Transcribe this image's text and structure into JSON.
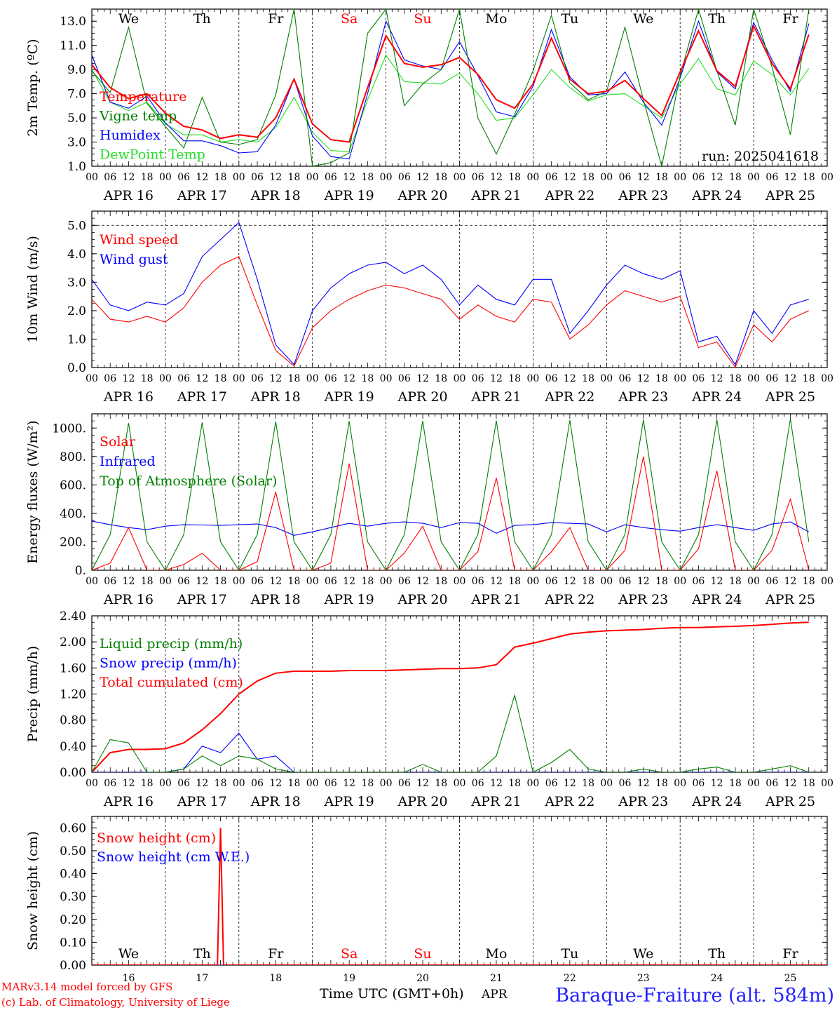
{
  "run_label": "run: 2025041618",
  "footer": {
    "model_line": "MARv3.14 model forced by GFS",
    "credit_line": "(c) Lab. of Climatology, University of Liege",
    "time_label": "Time UTC (GMT+0h)",
    "month_label": "APR",
    "station": "Baraque-Fraiture (alt. 584m)"
  },
  "hour_ticks": [
    "00",
    "06",
    "12",
    "18"
  ],
  "date_labels": [
    "APR 16",
    "APR 17",
    "APR 18",
    "APR 19",
    "APR 20",
    "APR 21",
    "APR 22",
    "APR 23",
    "APR 24",
    "APR 25"
  ],
  "day_numbers": [
    "16",
    "17",
    "18",
    "19",
    "20",
    "21",
    "22",
    "23",
    "24",
    "25"
  ],
  "weekdays": [
    {
      "label": "We",
      "weekend": false
    },
    {
      "label": "Th",
      "weekend": false
    },
    {
      "label": "Fr",
      "weekend": false
    },
    {
      "label": "Sa",
      "weekend": true
    },
    {
      "label": "Su",
      "weekend": true
    },
    {
      "label": "Mo",
      "weekend": false
    },
    {
      "label": "Tu",
      "weekend": false
    },
    {
      "label": "We",
      "weekend": false
    },
    {
      "label": "Th",
      "weekend": false
    },
    {
      "label": "Fr",
      "weekend": false
    }
  ],
  "colors": {
    "red": "#ff0000",
    "dark_green": "#008000",
    "blue": "#0000ff",
    "light_green": "#22dd22",
    "weekend": "#ff0000",
    "station": "#2222ff"
  },
  "chart_data": [
    {
      "type": "line",
      "ylabel": "2m Temp. (ºC)",
      "ylim": [
        1,
        14
      ],
      "yticks": [
        "1.0",
        "3.0",
        "5.0",
        "7.0",
        "9.0",
        "11.0",
        "13.0"
      ],
      "x": [
        0,
        6,
        12,
        18,
        24,
        30,
        36,
        42,
        48,
        54,
        60,
        66,
        72,
        78,
        84,
        90,
        96,
        102,
        108,
        114,
        120,
        126,
        132,
        138,
        144,
        150,
        156,
        162,
        168,
        174,
        180,
        186,
        192,
        198,
        204,
        210,
        216,
        222,
        228,
        234
      ],
      "series": [
        {
          "name": "Temperature",
          "color": "#ff0000",
          "values": [
            9.4,
            7.5,
            6.6,
            7.0,
            5.4,
            4.3,
            4.0,
            3.3,
            3.6,
            3.4,
            5.0,
            8.2,
            4.5,
            3.2,
            3.0,
            7.5,
            11.8,
            9.5,
            9.2,
            9.4,
            10.0,
            8.6,
            6.5,
            5.8,
            7.8,
            11.6,
            8.2,
            7.0,
            7.2,
            8.1,
            6.6,
            5.2,
            8.8,
            12.2,
            8.9,
            7.6,
            12.6,
            9.5,
            7.4,
            11.9
          ]
        },
        {
          "name": "Vigne temp",
          "color": "#008000",
          "values": [
            8.9,
            7.1,
            12.5,
            6.2,
            4.3,
            2.5,
            6.7,
            3.0,
            2.8,
            3.2,
            6.9,
            14.0,
            1.0,
            1.3,
            2.1,
            12.0,
            14.0,
            6.0,
            7.8,
            9.0,
            14.0,
            5.0,
            2.0,
            5.3,
            8.9,
            13.5,
            7.9,
            6.5,
            7.2,
            12.5,
            6.5,
            1.0,
            8.5,
            14.0,
            8.9,
            4.4,
            14.0,
            9.2,
            3.6,
            14.0
          ]
        },
        {
          "name": "Humidex",
          "color": "#0000ff",
          "values": [
            10.2,
            6.3,
            5.8,
            6.8,
            4.6,
            3.1,
            3.1,
            2.7,
            2.1,
            2.2,
            4.4,
            8.2,
            3.5,
            1.8,
            1.6,
            7.0,
            13.0,
            9.8,
            9.3,
            9.0,
            11.3,
            8.5,
            5.5,
            5.1,
            7.6,
            12.3,
            8.4,
            6.9,
            7.0,
            8.8,
            6.3,
            4.4,
            8.3,
            13.0,
            8.8,
            7.4,
            12.9,
            9.8,
            7.2,
            12.8
          ]
        },
        {
          "name": "DewPoint Temp",
          "color": "#22dd22",
          "values": [
            9.0,
            6.3,
            5.6,
            6.3,
            4.5,
            3.6,
            3.6,
            3.0,
            3.2,
            3.0,
            4.2,
            6.7,
            3.8,
            2.3,
            2.2,
            6.5,
            10.2,
            8.0,
            7.9,
            7.8,
            8.7,
            7.0,
            4.8,
            5.0,
            6.9,
            9.0,
            7.5,
            6.4,
            6.9,
            7.0,
            6.0,
            5.0,
            7.8,
            9.9,
            7.4,
            6.9,
            9.7,
            8.6,
            6.9,
            9.1
          ]
        }
      ]
    },
    {
      "type": "line",
      "ylabel": "10m Wind (m/s)",
      "ylim": [
        0,
        5.5
      ],
      "yticks": [
        "0.0",
        "1.0",
        "2.0",
        "3.0",
        "4.0",
        "5.0"
      ],
      "x": [
        0,
        6,
        12,
        18,
        24,
        30,
        36,
        42,
        48,
        54,
        60,
        66,
        72,
        78,
        84,
        90,
        96,
        102,
        108,
        114,
        120,
        126,
        132,
        138,
        144,
        150,
        156,
        162,
        168,
        174,
        180,
        186,
        192,
        198,
        204,
        210,
        216,
        222,
        228,
        234
      ],
      "series": [
        {
          "name": "Wind speed",
          "color": "#ff0000",
          "values": [
            2.4,
            1.7,
            1.6,
            1.8,
            1.6,
            2.1,
            3.0,
            3.6,
            3.9,
            2.2,
            0.6,
            0.05,
            1.4,
            2.0,
            2.4,
            2.7,
            2.9,
            2.8,
            2.6,
            2.4,
            1.7,
            2.2,
            1.8,
            1.6,
            2.4,
            2.3,
            1.0,
            1.5,
            2.2,
            2.7,
            2.5,
            2.3,
            2.5,
            0.7,
            0.9,
            0.02,
            1.5,
            0.9,
            1.7,
            2.0
          ]
        },
        {
          "name": "Wind gust",
          "color": "#0000ff",
          "values": [
            3.1,
            2.2,
            2.0,
            2.3,
            2.2,
            2.6,
            3.9,
            4.5,
            5.1,
            3.1,
            0.8,
            0.1,
            2.0,
            2.8,
            3.3,
            3.6,
            3.7,
            3.3,
            3.6,
            3.1,
            2.2,
            2.9,
            2.4,
            2.2,
            3.1,
            3.1,
            1.2,
            2.0,
            2.9,
            3.6,
            3.3,
            3.1,
            3.4,
            0.9,
            1.1,
            0.1,
            2.0,
            1.2,
            2.2,
            2.4
          ]
        }
      ]
    },
    {
      "type": "line",
      "ylabel": "Energy fluxes (W/m²)",
      "ylim": [
        0,
        1100
      ],
      "yticks": [
        "0.",
        "200.",
        "400.",
        "600.",
        "800.",
        "1000."
      ],
      "x": [
        0,
        6,
        12,
        18,
        24,
        30,
        36,
        42,
        48,
        54,
        60,
        66,
        72,
        78,
        84,
        90,
        96,
        102,
        108,
        114,
        120,
        126,
        132,
        138,
        144,
        150,
        156,
        162,
        168,
        174,
        180,
        186,
        192,
        198,
        204,
        210,
        216,
        222,
        228,
        234
      ],
      "series": [
        {
          "name": "Solar",
          "color": "#ff0000",
          "values": [
            0,
            50,
            300,
            0,
            0,
            40,
            120,
            0,
            0,
            60,
            550,
            0,
            0,
            50,
            750,
            0,
            0,
            120,
            310,
            0,
            0,
            130,
            650,
            0,
            0,
            130,
            300,
            0,
            0,
            140,
            800,
            0,
            0,
            150,
            700,
            0,
            0,
            140,
            500,
            0
          ]
        },
        {
          "name": "Infrared",
          "color": "#0000ff",
          "values": [
            345,
            320,
            300,
            285,
            310,
            320,
            318,
            315,
            320,
            325,
            300,
            245,
            270,
            300,
            330,
            310,
            330,
            340,
            330,
            300,
            335,
            330,
            260,
            315,
            320,
            335,
            330,
            325,
            270,
            320,
            300,
            285,
            275,
            300,
            320,
            300,
            280,
            325,
            340,
            270
          ]
        },
        {
          "name": "Top of Atmosphere (Solar)",
          "color": "#008000",
          "values": [
            0,
            250,
            1035,
            200,
            0,
            250,
            1040,
            200,
            0,
            250,
            1045,
            200,
            0,
            250,
            1048,
            200,
            0,
            250,
            1050,
            200,
            0,
            250,
            1052,
            200,
            0,
            250,
            1055,
            200,
            0,
            250,
            1058,
            200,
            0,
            250,
            1060,
            200,
            0,
            250,
            1065,
            200
          ]
        }
      ]
    },
    {
      "type": "line",
      "ylabel": "Precip (mm/h)",
      "ylim": [
        0,
        2.4
      ],
      "yticks": [
        "0.00",
        "0.40",
        "0.80",
        "1.20",
        "1.60",
        "2.00",
        "2.40"
      ],
      "x": [
        0,
        6,
        12,
        18,
        24,
        30,
        36,
        42,
        48,
        54,
        60,
        66,
        72,
        78,
        84,
        90,
        96,
        102,
        108,
        114,
        120,
        126,
        132,
        138,
        144,
        150,
        156,
        162,
        168,
        174,
        180,
        186,
        192,
        198,
        204,
        210,
        216,
        222,
        228,
        234
      ],
      "series": [
        {
          "name": "Liquid precip (mm/h)",
          "color": "#008000",
          "values": [
            0,
            0.5,
            0.45,
            0,
            0,
            0.05,
            0.25,
            0.1,
            0.25,
            0.2,
            0.05,
            0,
            0,
            0,
            0,
            0,
            0,
            0,
            0.12,
            0,
            0,
            0,
            0.25,
            1.18,
            0,
            0.15,
            0.35,
            0.05,
            0,
            0,
            0.05,
            0,
            0,
            0.05,
            0.08,
            0,
            0,
            0.05,
            0.1,
            0
          ]
        },
        {
          "name": "Snow precip (mm/h)",
          "color": "#0000ff",
          "values": [
            0,
            0,
            0,
            0,
            0,
            0.05,
            0.4,
            0.3,
            0.6,
            0.2,
            0.25,
            0,
            0,
            0,
            0,
            0,
            0,
            0,
            0,
            0,
            0,
            0,
            0,
            0,
            0,
            0,
            0,
            0,
            0,
            0,
            0,
            0,
            0,
            0,
            0,
            0,
            0,
            0,
            0,
            0
          ]
        },
        {
          "name": "Total cumulated (cm)",
          "color": "#ff0000",
          "values": [
            0,
            0.3,
            0.35,
            0.35,
            0.36,
            0.45,
            0.65,
            0.9,
            1.2,
            1.4,
            1.52,
            1.55,
            1.55,
            1.55,
            1.56,
            1.56,
            1.56,
            1.57,
            1.58,
            1.59,
            1.59,
            1.6,
            1.65,
            1.92,
            1.98,
            2.05,
            2.12,
            2.15,
            2.17,
            2.18,
            2.19,
            2.21,
            2.22,
            2.22,
            2.23,
            2.24,
            2.25,
            2.27,
            2.29,
            2.3
          ]
        }
      ]
    },
    {
      "type": "line",
      "ylabel": "Snow height (cm)",
      "ylim": [
        0,
        0.65
      ],
      "yticks": [
        "0.00",
        "0.10",
        "0.20",
        "0.30",
        "0.40",
        "0.50",
        "0.60"
      ],
      "x": [
        0,
        6,
        12,
        18,
        24,
        30,
        36,
        41,
        42,
        43,
        48,
        54,
        60,
        66,
        72,
        78,
        84,
        90,
        96,
        102,
        108,
        114,
        120,
        126,
        132,
        138,
        144,
        150,
        156,
        162,
        168,
        174,
        180,
        186,
        192,
        198,
        204,
        210,
        216,
        222,
        228,
        234,
        240
      ],
      "series": [
        {
          "name": "Snow height (cm)",
          "color": "#ff0000",
          "values": [
            0,
            0,
            0,
            0,
            0,
            0,
            0,
            0,
            0.6,
            0,
            0,
            0,
            0,
            0,
            0,
            0,
            0,
            0,
            0,
            0,
            0,
            0,
            0,
            0,
            0,
            0,
            0,
            0,
            0,
            0,
            0,
            0,
            0,
            0,
            0,
            0,
            0,
            0,
            0,
            0,
            0,
            0,
            0
          ]
        },
        {
          "name": "Snow height (cm W.E.)",
          "color": "#0000ff",
          "values": [
            0,
            0,
            0,
            0,
            0,
            0,
            0,
            0,
            0,
            0,
            0,
            0,
            0,
            0,
            0,
            0,
            0,
            0,
            0,
            0,
            0,
            0,
            0,
            0,
            0,
            0,
            0,
            0,
            0,
            0,
            0,
            0,
            0,
            0,
            0,
            0,
            0,
            0,
            0,
            0,
            0,
            0,
            0
          ]
        }
      ]
    }
  ]
}
